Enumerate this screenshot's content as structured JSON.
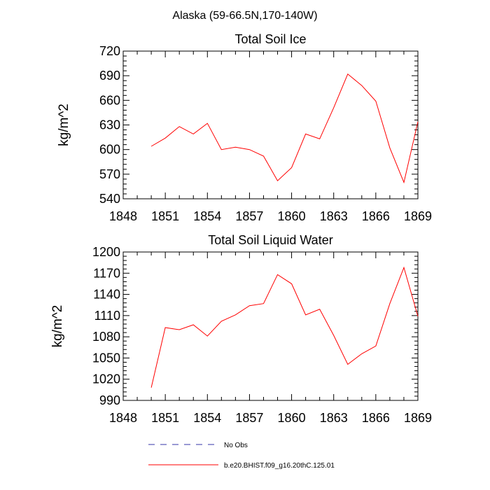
{
  "figure": {
    "title": "Alaska (59-66.5N,170-140W)",
    "legend": [
      {
        "label": "No Obs",
        "color": "#3333aa",
        "style": "dashed"
      },
      {
        "label": "b.e20.BHIST.f09_g16.20thC.125.01",
        "color": "#ff0000",
        "style": "solid"
      }
    ]
  },
  "chart_data": [
    {
      "type": "line",
      "title": "Total Soil Ice",
      "ylabel": "kg/m^2",
      "xlabel": "",
      "xlim": [
        1848,
        1869
      ],
      "ylim": [
        540,
        720
      ],
      "xticks": [
        1848,
        1851,
        1854,
        1857,
        1860,
        1863,
        1866,
        1869
      ],
      "yticks": [
        540,
        570,
        600,
        630,
        660,
        690,
        720
      ],
      "series": [
        {
          "color": "#ff0000",
          "x": [
            1850,
            1851,
            1852,
            1853,
            1854,
            1855,
            1856,
            1857,
            1858,
            1859,
            1860,
            1861,
            1862,
            1863,
            1864,
            1865,
            1866,
            1867,
            1868,
            1869
          ],
          "y": [
            604,
            614,
            628,
            619,
            632,
            600,
            603,
            600,
            592,
            562,
            578,
            619,
            613,
            651,
            692,
            678,
            659,
            602,
            560,
            634
          ]
        }
      ]
    },
    {
      "type": "line",
      "title": "Total Soil Liquid Water",
      "ylabel": "kg/m^2",
      "xlabel": "",
      "xlim": [
        1848,
        1869
      ],
      "ylim": [
        990,
        1200
      ],
      "xticks": [
        1848,
        1851,
        1854,
        1857,
        1860,
        1863,
        1866,
        1869
      ],
      "yticks": [
        990,
        1020,
        1050,
        1080,
        1110,
        1140,
        1170,
        1200
      ],
      "series": [
        {
          "color": "#ff0000",
          "x": [
            1850,
            1851,
            1852,
            1853,
            1854,
            1855,
            1856,
            1857,
            1858,
            1859,
            1860,
            1861,
            1862,
            1863,
            1864,
            1865,
            1866,
            1867,
            1868,
            1869
          ],
          "y": [
            1008,
            1093,
            1090,
            1097,
            1081,
            1102,
            1111,
            1124,
            1127,
            1168,
            1155,
            1111,
            1119,
            1082,
            1041,
            1056,
            1067,
            1127,
            1178,
            1109
          ]
        }
      ]
    }
  ]
}
